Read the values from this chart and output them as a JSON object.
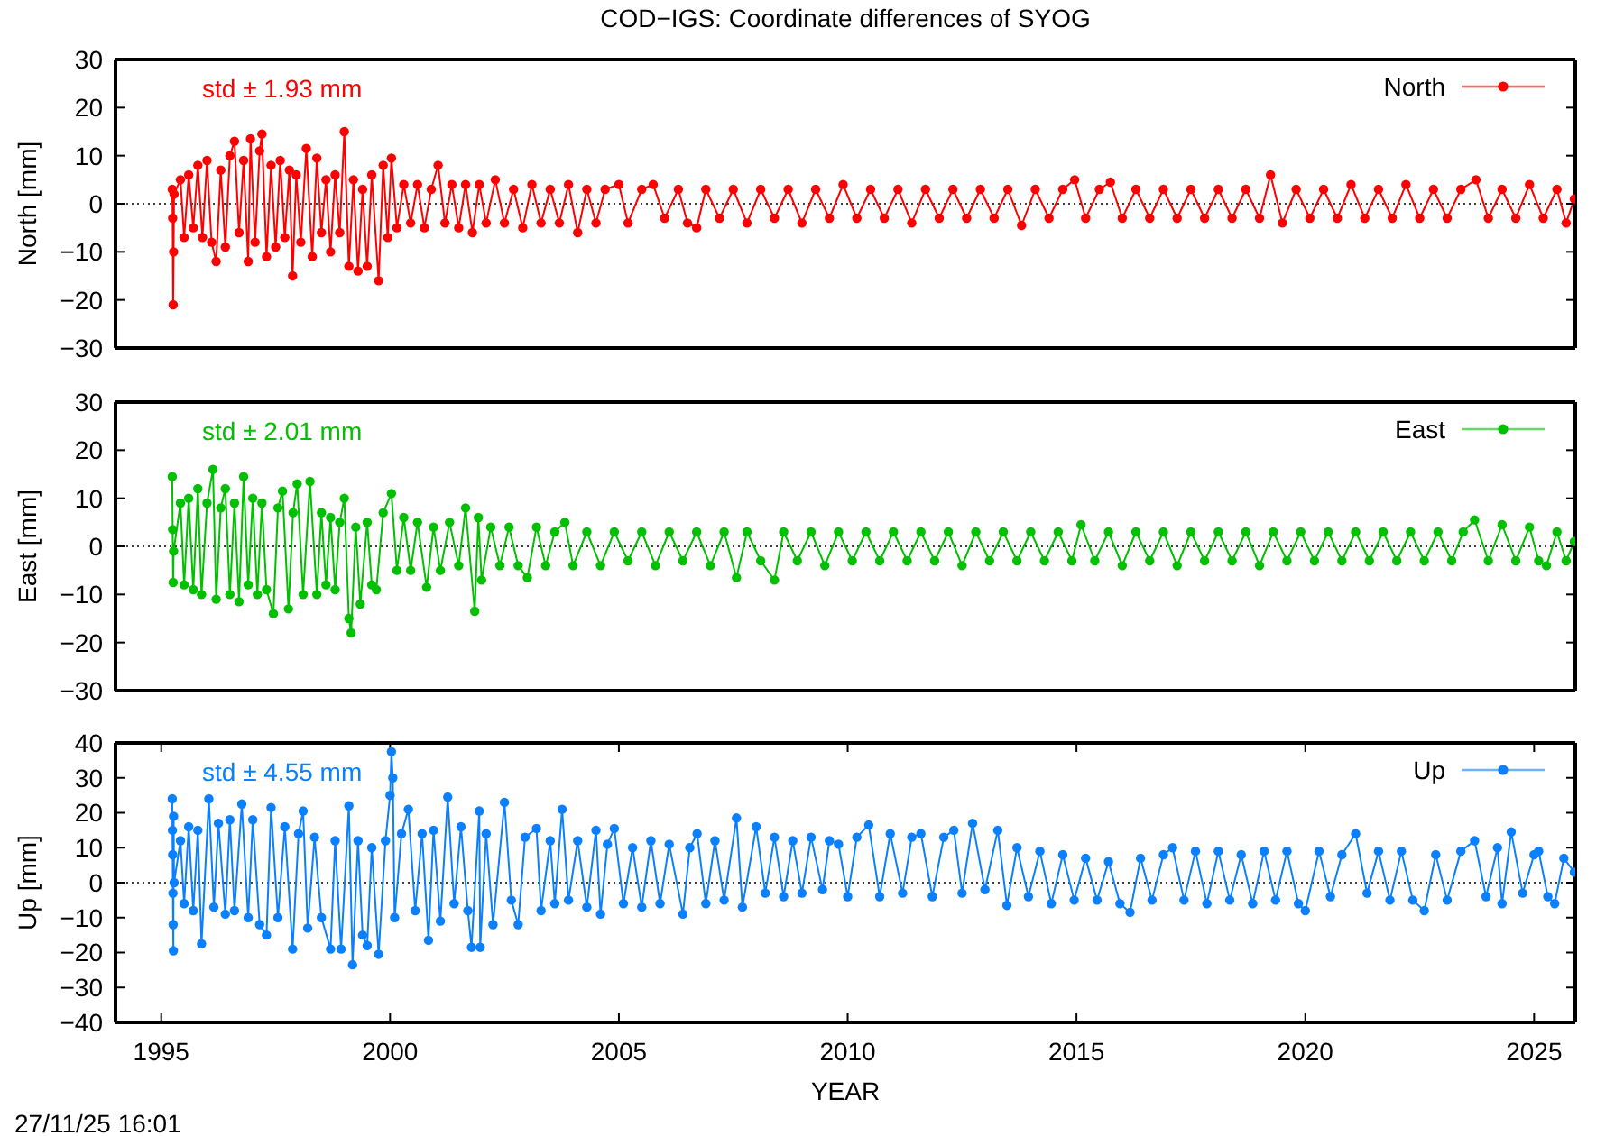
{
  "chart_data": [
    {
      "type": "line",
      "title": "COD−IGS: Coordinate differences of SYOG",
      "ylabel": "North [mm]",
      "xlim": [
        1994,
        2025.9
      ],
      "ylim": [
        -30,
        30
      ],
      "yticks": [
        {
          "value": -30,
          "label": "−30"
        },
        {
          "value": -20,
          "label": "−20"
        },
        {
          "value": -10,
          "label": "−10"
        },
        0,
        10,
        20,
        30
      ],
      "tick_labels": "y",
      "marker": "circle",
      "line_style": "solid",
      "legend": "top right",
      "ref_lines": [
        {
          "axis": "y",
          "value": 0,
          "color": "#404040",
          "line_style": "dotted"
        }
      ],
      "annotations": [
        "std ± 1.93 mm"
      ],
      "x": [
        1995.24,
        1995.25,
        1995.26,
        1995.27,
        1995.28,
        1995.42,
        1995.5,
        1995.6,
        1995.7,
        1995.8,
        1995.9,
        1996.0,
        1996.1,
        1996.2,
        1996.3,
        1996.4,
        1996.5,
        1996.6,
        1996.7,
        1996.8,
        1996.9,
        1996.95,
        1997.05,
        1997.15,
        1997.2,
        1997.3,
        1997.4,
        1997.5,
        1997.6,
        1997.7,
        1997.8,
        1997.87,
        1997.95,
        1998.05,
        1998.17,
        1998.3,
        1998.4,
        1998.5,
        1998.6,
        1998.7,
        1998.8,
        1998.9,
        1999.0,
        1999.1,
        1999.2,
        1999.3,
        1999.4,
        1999.5,
        1999.6,
        1999.75,
        1999.85,
        1999.95,
        2000.03,
        2000.15,
        2000.3,
        2000.45,
        2000.6,
        2000.75,
        2000.9,
        2001.05,
        2001.2,
        2001.35,
        2001.5,
        2001.65,
        2001.8,
        2001.95,
        2002.1,
        2002.3,
        2002.5,
        2002.7,
        2002.9,
        2003.1,
        2003.3,
        2003.5,
        2003.7,
        2003.9,
        2004.1,
        2004.3,
        2004.5,
        2004.7,
        2005.0,
        2005.2,
        2005.5,
        2005.75,
        2006.0,
        2006.3,
        2006.5,
        2006.7,
        2006.9,
        2007.2,
        2007.5,
        2007.8,
        2008.1,
        2008.4,
        2008.7,
        2009.0,
        2009.3,
        2009.6,
        2009.9,
        2010.2,
        2010.5,
        2010.8,
        2011.1,
        2011.4,
        2011.7,
        2012.0,
        2012.3,
        2012.6,
        2012.9,
        2013.2,
        2013.5,
        2013.8,
        2014.1,
        2014.4,
        2014.7,
        2014.96,
        2015.2,
        2015.5,
        2015.74,
        2016.0,
        2016.3,
        2016.6,
        2016.9,
        2017.2,
        2017.5,
        2017.8,
        2018.1,
        2018.4,
        2018.7,
        2019.0,
        2019.24,
        2019.5,
        2019.8,
        2020.1,
        2020.4,
        2020.7,
        2021.0,
        2021.3,
        2021.6,
        2021.9,
        2022.2,
        2022.5,
        2022.8,
        2023.1,
        2023.4,
        2023.73,
        2024.0,
        2024.3,
        2024.6,
        2024.9,
        2025.2,
        2025.5,
        2025.7,
        2025.88
      ],
      "series": [
        {
          "name": "North",
          "color": "#ff0000",
          "values": [
            3,
            -3,
            -21,
            -10,
            2,
            5,
            -7,
            6,
            -5,
            8,
            -7,
            9,
            -8,
            -12,
            7,
            -9,
            10,
            13,
            -6,
            9,
            -12,
            13.5,
            -8,
            11,
            14.5,
            -11,
            8,
            -9,
            9,
            -7,
            7,
            -15,
            6,
            -8,
            11.5,
            -11,
            9.5,
            -6,
            5,
            -10,
            6,
            -6,
            15,
            -13,
            5,
            -14,
            3,
            -13,
            6,
            -16,
            8,
            -7,
            9.5,
            -5,
            4,
            -4,
            4,
            -5,
            3,
            8,
            -4,
            4,
            -5,
            4,
            -6,
            4,
            -4,
            5,
            -4,
            3,
            -5,
            4,
            -4,
            3,
            -4,
            4,
            -6,
            3,
            -4,
            3,
            4,
            -4,
            3,
            4,
            -3,
            3,
            -4,
            -5,
            3,
            -3,
            3,
            -4,
            3,
            -3,
            3,
            -4,
            3,
            -3,
            4,
            -3,
            3,
            -3,
            3,
            -4,
            3,
            -3,
            3,
            -3,
            3,
            -3,
            3,
            -4.5,
            3,
            -3,
            3,
            5,
            -3,
            3,
            4.5,
            -3,
            3,
            -3,
            3,
            -3,
            3,
            -3,
            3,
            -3,
            3,
            -3,
            6,
            -4,
            3,
            -3,
            3,
            -3,
            4,
            -3,
            3,
            -3,
            4,
            -3,
            3,
            -3,
            3,
            5,
            -3,
            3,
            -3,
            4,
            -3,
            3,
            -4,
            1
          ]
        }
      ]
    },
    {
      "type": "line",
      "ylabel": "East [mm]",
      "xlim": [
        1994,
        2025.9
      ],
      "ylim": [
        -30,
        30
      ],
      "yticks": [
        {
          "value": -30,
          "label": "−30"
        },
        {
          "value": -20,
          "label": "−20"
        },
        {
          "value": -10,
          "label": "−10"
        },
        0,
        10,
        20,
        30
      ],
      "tick_labels": "y",
      "marker": "circle",
      "line_style": "solid",
      "legend": "top right",
      "ref_lines": [
        {
          "axis": "y",
          "value": 0,
          "color": "#404040",
          "line_style": "dotted"
        }
      ],
      "annotations": [
        "std ± 2.01 mm"
      ],
      "x": [
        1995.24,
        1995.25,
        1995.26,
        1995.27,
        1995.42,
        1995.5,
        1995.6,
        1995.7,
        1995.8,
        1995.88,
        1996.0,
        1996.13,
        1996.2,
        1996.3,
        1996.4,
        1996.5,
        1996.6,
        1996.7,
        1996.8,
        1996.9,
        1997.0,
        1997.1,
        1997.2,
        1997.3,
        1997.45,
        1997.55,
        1997.65,
        1997.78,
        1997.88,
        1997.97,
        1998.1,
        1998.25,
        1998.4,
        1998.5,
        1998.6,
        1998.7,
        1998.8,
        1998.9,
        1999.0,
        1999.1,
        1999.15,
        1999.25,
        1999.35,
        1999.5,
        1999.6,
        1999.7,
        1999.85,
        2000.03,
        2000.15,
        2000.3,
        2000.45,
        2000.6,
        2000.8,
        2000.95,
        2001.1,
        2001.3,
        2001.5,
        2001.65,
        2001.85,
        2001.93,
        2002.0,
        2002.2,
        2002.4,
        2002.6,
        2002.8,
        2003.0,
        2003.2,
        2003.4,
        2003.6,
        2003.82,
        2004.0,
        2004.3,
        2004.6,
        2004.9,
        2005.2,
        2005.5,
        2005.8,
        2006.1,
        2006.4,
        2006.7,
        2007.0,
        2007.3,
        2007.57,
        2007.8,
        2008.1,
        2008.4,
        2008.6,
        2008.9,
        2009.2,
        2009.5,
        2009.8,
        2010.1,
        2010.4,
        2010.7,
        2011.0,
        2011.3,
        2011.6,
        2011.9,
        2012.2,
        2012.5,
        2012.8,
        2013.1,
        2013.4,
        2013.7,
        2014.0,
        2014.3,
        2014.6,
        2014.9,
        2015.1,
        2015.4,
        2015.7,
        2016.0,
        2016.3,
        2016.6,
        2016.9,
        2017.2,
        2017.5,
        2017.8,
        2018.1,
        2018.4,
        2018.7,
        2019.0,
        2019.3,
        2019.6,
        2019.9,
        2020.2,
        2020.5,
        2020.8,
        2021.1,
        2021.4,
        2021.7,
        2022.0,
        2022.3,
        2022.6,
        2022.9,
        2023.2,
        2023.45,
        2023.7,
        2024.0,
        2024.3,
        2024.6,
        2024.9,
        2025.1,
        2025.27,
        2025.5,
        2025.7,
        2025.88
      ],
      "series": [
        {
          "name": "East",
          "color": "#00c000",
          "values": [
            14.5,
            3.5,
            -7.5,
            -1,
            9,
            -8,
            10,
            -9,
            12,
            -10,
            9,
            16,
            -11,
            8,
            12,
            -10,
            9,
            -11.5,
            14.5,
            -8,
            10,
            -10,
            9,
            -9,
            -14,
            8,
            11.5,
            -13,
            7,
            13,
            -10,
            13.5,
            -10,
            7,
            -8,
            6,
            -9,
            5,
            10,
            -15,
            -18,
            4,
            -12,
            5,
            -8,
            -9,
            7,
            11,
            -5,
            6,
            -5,
            5,
            -8.5,
            4,
            -5,
            5,
            -4,
            8,
            -13.5,
            6,
            -7,
            4,
            -4,
            4,
            -4,
            -6.5,
            4,
            -4,
            3,
            5,
            -4,
            3,
            -4,
            3,
            -3,
            3,
            -4,
            3,
            -3,
            3,
            -4,
            3,
            -6.5,
            3,
            -3,
            -7,
            3,
            -3,
            3,
            -4,
            3,
            -3,
            3,
            -3,
            3,
            -3,
            3,
            -3,
            3,
            -4,
            3,
            -3,
            3,
            -3,
            3,
            -3,
            3,
            -3,
            4.5,
            -3,
            3,
            -4,
            3,
            -3,
            3,
            -4,
            3,
            -3,
            3,
            -3,
            3,
            -4,
            3,
            -3,
            3,
            -3,
            3,
            -3,
            3,
            -3,
            3,
            -3,
            3,
            -3,
            3,
            -3,
            3,
            5.5,
            -3,
            4.5,
            -3,
            4,
            -3,
            -4,
            3,
            -3,
            1
          ]
        }
      ]
    },
    {
      "type": "line",
      "ylabel": "Up [mm]",
      "xlabel": "YEAR",
      "xlim": [
        1994,
        2025.9
      ],
      "xticks": [
        1995,
        2000,
        2005,
        2010,
        2015,
        2020,
        2025
      ],
      "ylim": [
        -40,
        40
      ],
      "yticks": [
        {
          "value": -40,
          "label": "−40"
        },
        {
          "value": -30,
          "label": "−30"
        },
        {
          "value": -20,
          "label": "−20"
        },
        {
          "value": -10,
          "label": "−10"
        },
        0,
        10,
        20,
        30,
        40
      ],
      "marker": "circle",
      "line_style": "solid",
      "legend": "top right",
      "ref_lines": [
        {
          "axis": "y",
          "value": 0,
          "color": "#404040",
          "line_style": "dotted"
        }
      ],
      "annotations": [
        "std ± 4.55 mm",
        "27/11/25 16:01"
      ],
      "x": [
        1995.24,
        1995.245,
        1995.25,
        1995.255,
        1995.26,
        1995.265,
        1995.27,
        1995.28,
        1995.42,
        1995.5,
        1995.6,
        1995.7,
        1995.8,
        1995.88,
        1996.04,
        1996.15,
        1996.25,
        1996.4,
        1996.5,
        1996.6,
        1996.76,
        1996.9,
        1997.0,
        1997.15,
        1997.3,
        1997.4,
        1997.55,
        1997.7,
        1997.87,
        1998.0,
        1998.1,
        1998.2,
        1998.35,
        1998.5,
        1998.7,
        1998.8,
        1998.93,
        1999.1,
        1999.18,
        1999.3,
        1999.4,
        1999.5,
        1999.6,
        1999.75,
        1999.9,
        2000.0,
        2000.03,
        2000.06,
        2000.1,
        2000.25,
        2000.4,
        2000.55,
        2000.7,
        2000.84,
        2000.95,
        2001.1,
        2001.26,
        2001.4,
        2001.55,
        2001.7,
        2001.78,
        2001.95,
        2001.97,
        2002.1,
        2002.25,
        2002.5,
        2002.65,
        2002.8,
        2002.95,
        2003.2,
        2003.3,
        2003.5,
        2003.6,
        2003.76,
        2003.9,
        2004.1,
        2004.3,
        2004.5,
        2004.6,
        2004.75,
        2004.9,
        2005.1,
        2005.3,
        2005.5,
        2005.7,
        2005.9,
        2006.1,
        2006.4,
        2006.55,
        2006.71,
        2006.9,
        2007.1,
        2007.3,
        2007.57,
        2007.7,
        2008.0,
        2008.2,
        2008.4,
        2008.6,
        2008.8,
        2009.0,
        2009.2,
        2009.45,
        2009.6,
        2009.8,
        2010.0,
        2010.2,
        2010.46,
        2010.7,
        2010.93,
        2011.2,
        2011.4,
        2011.6,
        2011.85,
        2012.1,
        2012.32,
        2012.5,
        2012.73,
        2013.0,
        2013.28,
        2013.48,
        2013.7,
        2013.95,
        2014.2,
        2014.45,
        2014.7,
        2014.95,
        2015.2,
        2015.45,
        2015.7,
        2015.95,
        2016.17,
        2016.4,
        2016.65,
        2016.9,
        2017.1,
        2017.35,
        2017.6,
        2017.85,
        2018.1,
        2018.35,
        2018.6,
        2018.85,
        2019.1,
        2019.35,
        2019.6,
        2019.85,
        2020.0,
        2020.3,
        2020.55,
        2020.8,
        2021.1,
        2021.35,
        2021.6,
        2021.85,
        2022.1,
        2022.35,
        2022.6,
        2022.85,
        2023.1,
        2023.4,
        2023.7,
        2023.95,
        2024.2,
        2024.3,
        2024.5,
        2024.75,
        2025.0,
        2025.1,
        2025.3,
        2025.45,
        2025.65,
        2025.88
      ],
      "series": [
        {
          "name": "Up",
          "color": "#0a80ff",
          "values": [
            24,
            15,
            8,
            -3,
            -12,
            -19.5,
            19,
            0,
            12,
            -6,
            16,
            -8,
            15,
            -17.5,
            24,
            -7,
            17,
            -9,
            18,
            -8,
            22.5,
            -10,
            18,
            -12,
            -15,
            21.5,
            -10,
            16,
            -19,
            14,
            20.5,
            -13,
            13,
            -10,
            -19,
            12,
            -19,
            22,
            -23.5,
            12,
            -15,
            -18,
            10,
            -20.5,
            12,
            25,
            37.5,
            30,
            -10,
            14,
            21,
            -8,
            14,
            -16.5,
            15,
            -11,
            24.5,
            -6,
            16,
            -8,
            -18.5,
            20.5,
            -18.5,
            14,
            -12,
            23,
            -5,
            -12,
            13,
            15.5,
            -8,
            12,
            -6,
            21,
            -5,
            12,
            -7,
            15,
            -9,
            11,
            15.5,
            -6,
            10,
            -7,
            12,
            -6,
            11,
            -9,
            10,
            14,
            -6,
            12,
            -5,
            18.5,
            -7,
            16,
            -3,
            13,
            -4,
            12,
            -3,
            13,
            -2,
            12,
            11,
            -4,
            13,
            16.5,
            -4,
            14,
            -3,
            13,
            14,
            -4,
            13,
            15,
            -3,
            17,
            -2,
            15,
            -6.5,
            10,
            -4,
            9,
            -6,
            8,
            -5,
            7,
            -5,
            6,
            -6,
            -8.5,
            7,
            -5,
            8,
            10,
            -5,
            9,
            -6,
            9,
            -5,
            8,
            -6,
            9,
            -5,
            9,
            -6,
            -8,
            9,
            -4,
            8,
            14,
            -3,
            9,
            -5,
            9,
            -5,
            -8,
            8,
            -5,
            9,
            12,
            -4,
            10,
            -6,
            14.5,
            -3,
            8,
            9,
            -4,
            -6,
            7,
            3
          ]
        }
      ]
    }
  ]
}
